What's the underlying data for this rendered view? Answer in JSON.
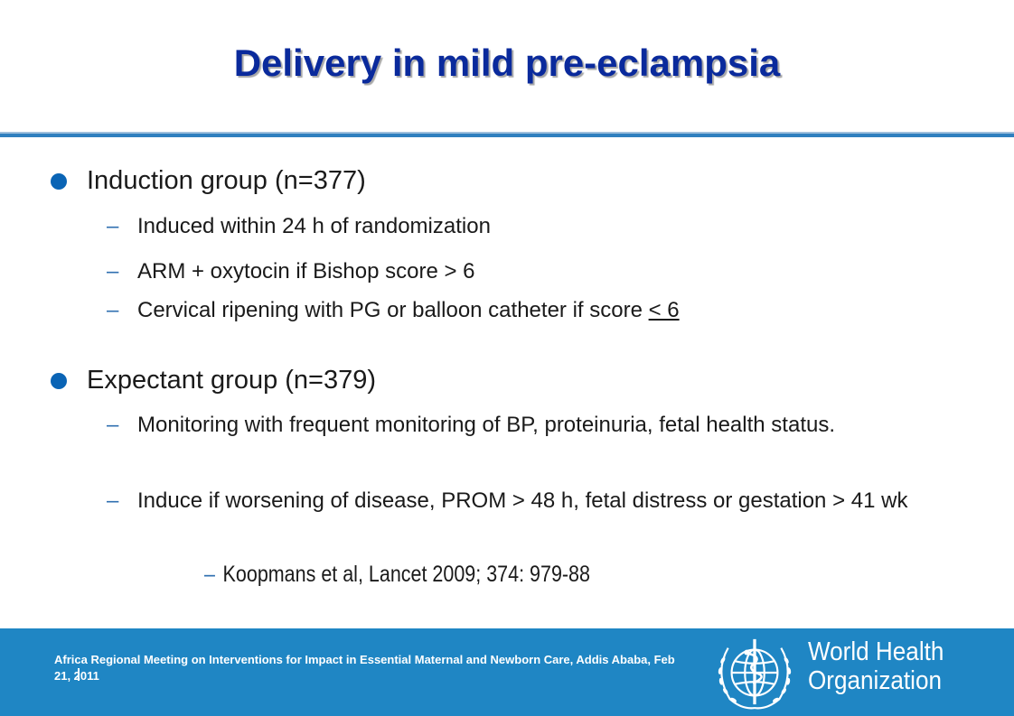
{
  "slide": {
    "title": "Delivery in mild pre-eclampsia",
    "groups": [
      {
        "heading": "Induction group (n=377)",
        "items": [
          "Induced within 24 h of randomization",
          "ARM + oxytocin if Bishop score > 6",
          "Cervical ripening with PG or balloon catheter if score ",
          "< 6"
        ]
      },
      {
        "heading": "Expectant group (n=379)",
        "items": [
          "Monitoring with frequent monitoring of BP, proteinuria, fetal health status.",
          "Induce if worsening of disease, PROM > 48 h, fetal distress or gestation > 41 wk"
        ]
      }
    ],
    "dash": "–",
    "reference": "Koopmans et al, Lancet 2009; 374: 979-88"
  },
  "footer": {
    "meeting": "Africa Regional Meeting on Interventions for Impact in Essential Maternal and Newborn Care, Addis Ababa, Feb 21, 2011",
    "org_line1": "World Health",
    "org_line2": "Organization"
  },
  "colors": {
    "title": "#0a2a9c",
    "accent": "#2f7fbf",
    "bullet": "#0a64b5",
    "footer_bg": "#1f86c4"
  },
  "icons": {
    "logo": "who-emblem-icon",
    "bullet": "bullet-dot-icon"
  }
}
